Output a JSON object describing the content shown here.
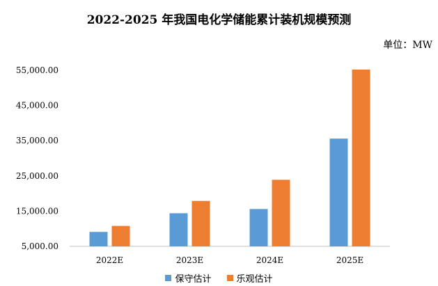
{
  "title": "2022-2025 年我国电化学储能累计装机规模预测",
  "unit_label": "单位：MW",
  "colors": {
    "conservative": "#5B9BD5",
    "optimistic": "#ED7D31",
    "axis": "#BFBFBF"
  },
  "chart_data": {
    "type": "bar",
    "title": "2022-2025 年我国电化学储能累计装机规模预测",
    "xlabel": "",
    "ylabel": "",
    "categories": [
      "2022E",
      "2023E",
      "2024E",
      "2025E"
    ],
    "ylim": [
      5000,
      55000
    ],
    "yticks": [
      5000,
      15000,
      25000,
      35000,
      45000,
      55000
    ],
    "ytick_labels": [
      "5,000.00",
      "15,000.00",
      "25,000.00",
      "35,000.00",
      "45,000.00",
      "55,000.00"
    ],
    "grid": false,
    "legend_position": "bottom",
    "series": [
      {
        "name": "保守估计",
        "values": [
          9100,
          14400,
          15600,
          35600
        ]
      },
      {
        "name": "乐观估计",
        "values": [
          10800,
          17900,
          23900,
          55200
        ]
      }
    ]
  }
}
